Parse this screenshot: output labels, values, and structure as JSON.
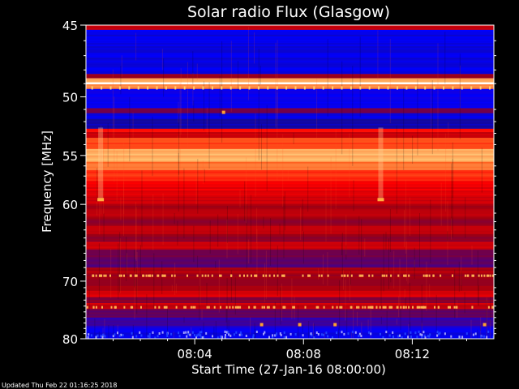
{
  "footer": {
    "updated": "Updated Thu Feb 22 01:16:25 2018"
  },
  "chart_data": {
    "type": "heatmap",
    "title": "Solar radio Flux (Glasgow)",
    "xlabel": "Start Time (27-Jan-16 08:00:00)",
    "ylabel": "Frequency [MHz]",
    "x_ticks": [
      "08:04",
      "08:08",
      "08:12"
    ],
    "x_tick_minutes": [
      4,
      8,
      12
    ],
    "xlim_minutes": [
      0,
      15
    ],
    "y_ticks": [
      45,
      50,
      55,
      60,
      70,
      80
    ],
    "ylim": [
      45,
      80
    ],
    "y_scale": "reciprocal",
    "colormap": [
      "#000000",
      "#1a0a80",
      "#0000ff",
      "#600060",
      "#a00010",
      "#ff0000",
      "#ff6020",
      "#ffc070",
      "#ffffff"
    ],
    "bands": [
      {
        "from": 45.0,
        "to": 45.3,
        "level": 0.55
      },
      {
        "from": 45.3,
        "to": 48.3,
        "level": 0.22
      },
      {
        "from": 48.3,
        "to": 48.6,
        "level": 0.5
      },
      {
        "from": 48.6,
        "to": 48.9,
        "level": 0.85
      },
      {
        "from": 48.9,
        "to": 49.05,
        "level": 1.0
      },
      {
        "from": 49.05,
        "to": 49.4,
        "level": 0.8
      },
      {
        "from": 49.4,
        "to": 50.9,
        "level": 0.25
      },
      {
        "from": 50.9,
        "to": 51.3,
        "level": 0.42
      },
      {
        "from": 51.3,
        "to": 51.8,
        "level": 0.22
      },
      {
        "from": 51.8,
        "to": 52.6,
        "level": 0.18
      },
      {
        "from": 52.6,
        "to": 52.9,
        "level": 0.65
      },
      {
        "from": 52.9,
        "to": 53.4,
        "level": 0.55
      },
      {
        "from": 53.4,
        "to": 54.4,
        "level": 0.72
      },
      {
        "from": 54.4,
        "to": 55.6,
        "level": 0.85
      },
      {
        "from": 55.6,
        "to": 56.4,
        "level": 0.78
      },
      {
        "from": 56.4,
        "to": 57.5,
        "level": 0.68
      },
      {
        "from": 57.5,
        "to": 59.0,
        "level": 0.6
      },
      {
        "from": 59.0,
        "to": 60.0,
        "level": 0.56
      },
      {
        "from": 60.0,
        "to": 61.5,
        "level": 0.52
      },
      {
        "from": 61.5,
        "to": 62.5,
        "level": 0.48
      },
      {
        "from": 62.5,
        "to": 63.5,
        "level": 0.54
      },
      {
        "from": 63.5,
        "to": 64.5,
        "level": 0.47
      },
      {
        "from": 64.5,
        "to": 65.5,
        "level": 0.56
      },
      {
        "from": 65.5,
        "to": 66.5,
        "level": 0.42
      },
      {
        "from": 66.5,
        "to": 68.0,
        "level": 0.36
      },
      {
        "from": 68.0,
        "to": 69.0,
        "level": 0.52
      },
      {
        "from": 69.0,
        "to": 71.5,
        "level": 0.5
      },
      {
        "from": 71.5,
        "to": 72.5,
        "level": 0.58
      },
      {
        "from": 72.5,
        "to": 73.5,
        "level": 0.45
      },
      {
        "from": 73.5,
        "to": 74.5,
        "level": 0.55
      },
      {
        "from": 74.5,
        "to": 76.0,
        "level": 0.38
      },
      {
        "from": 76.0,
        "to": 77.5,
        "level": 0.32
      },
      {
        "from": 77.5,
        "to": 78.5,
        "level": 0.28
      },
      {
        "from": 78.5,
        "to": 80.0,
        "level": 0.24
      }
    ]
  }
}
